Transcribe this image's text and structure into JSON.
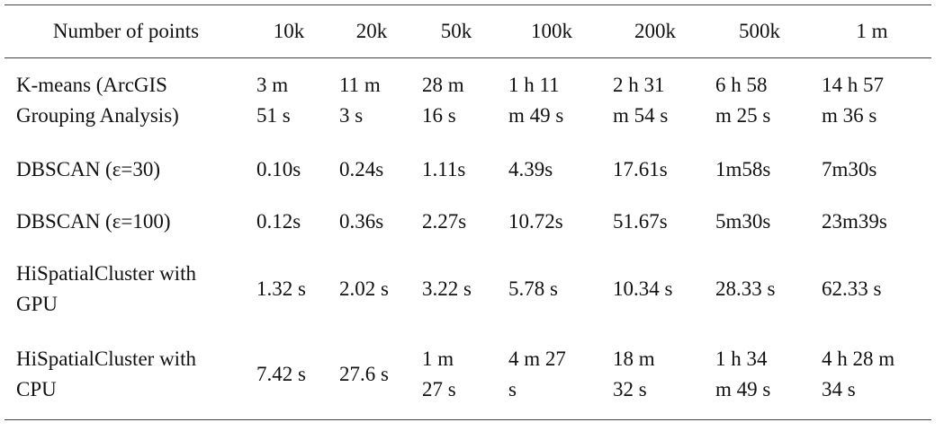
{
  "table": {
    "header": [
      "Number of points",
      "10k",
      "20k",
      "50k",
      "100k",
      "200k",
      "500k",
      "1 m"
    ],
    "rows": [
      [
        [
          "K-means (ArcGIS",
          "Grouping Analysis)"
        ],
        [
          "3 m",
          "51 s"
        ],
        [
          "11 m",
          "3 s"
        ],
        [
          "28 m",
          "16 s"
        ],
        [
          "1 h 11",
          "m 49 s"
        ],
        [
          "2 h 31",
          "m 54 s"
        ],
        [
          "6 h 58",
          "m 25 s"
        ],
        [
          "14 h 57",
          "m 36 s"
        ]
      ],
      [
        [
          "DBSCAN (ε=30)"
        ],
        [
          "0.10s"
        ],
        [
          "0.24s"
        ],
        [
          "1.11s"
        ],
        [
          "4.39s"
        ],
        [
          "17.61s"
        ],
        [
          "1m58s"
        ],
        [
          "7m30s"
        ]
      ],
      [
        [
          "DBSCAN (ε=100)"
        ],
        [
          "0.12s"
        ],
        [
          "0.36s"
        ],
        [
          "2.27s"
        ],
        [
          "10.72s"
        ],
        [
          "51.67s"
        ],
        [
          "5m30s"
        ],
        [
          "23m39s"
        ]
      ],
      [
        [
          "HiSpatialCluster with",
          "GPU"
        ],
        [
          "1.32 s"
        ],
        [
          "2.02 s"
        ],
        [
          "3.22 s"
        ],
        [
          "5.78 s"
        ],
        [
          "10.34 s"
        ],
        [
          "28.33 s"
        ],
        [
          "62.33 s"
        ]
      ],
      [
        [
          "HiSpatialCluster with",
          "CPU"
        ],
        [
          "7.42 s"
        ],
        [
          "27.6 s"
        ],
        [
          "1 m",
          "27 s"
        ],
        [
          "4 m 27",
          "s"
        ],
        [
          "18 m",
          "32 s"
        ],
        [
          "1 h 34",
          "m 49 s"
        ],
        [
          "4 h 28 m",
          "34 s"
        ]
      ]
    ]
  }
}
